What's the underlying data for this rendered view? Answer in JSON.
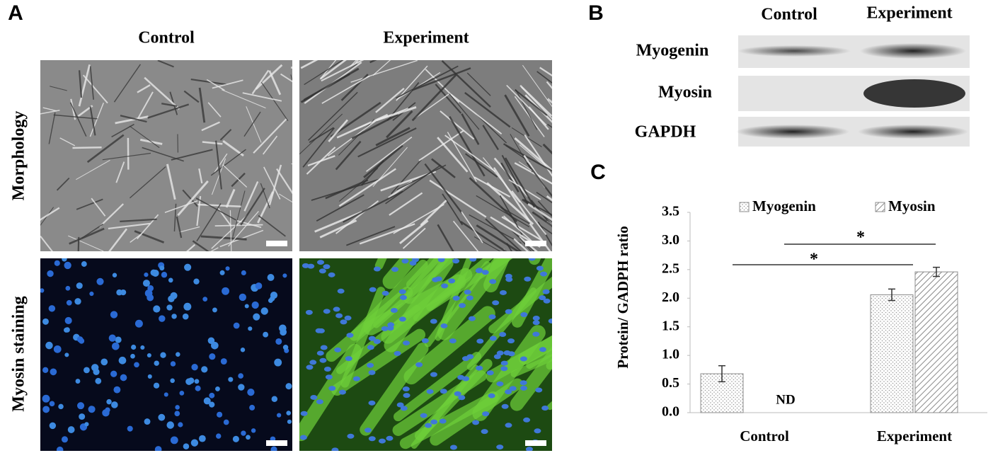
{
  "panel_a": {
    "label": "A",
    "columns": [
      "Control",
      "Experiment"
    ],
    "rows": [
      "Morphology",
      "Myosin staining"
    ]
  },
  "panel_b": {
    "label": "B",
    "columns": [
      "Control",
      "Experiment"
    ],
    "rows": [
      "Myogenin",
      "Myosin",
      "GAPDH"
    ]
  },
  "panel_c": {
    "label": "C"
  },
  "chart_data": {
    "type": "bar",
    "y_label": "Protein/ GADPH ratio",
    "categories": [
      "Control",
      "Experiment"
    ],
    "series": [
      {
        "name": "Myogenin",
        "color": "#8c8c8c",
        "pattern": "dots",
        "values": [
          0.68,
          2.06
        ],
        "errors": [
          0.14,
          0.1
        ]
      },
      {
        "name": "Myosin",
        "color": "#8c8c8c",
        "pattern": "hatch",
        "values": [
          null,
          2.46
        ],
        "errors": [
          null,
          0.08
        ]
      }
    ],
    "ylim": [
      0,
      3.5
    ],
    "yticks": [
      {
        "value": 0,
        "label": "0.0"
      },
      0.5,
      {
        "value": 1,
        "label": "1.0"
      },
      1.5,
      {
        "value": 2,
        "label": "2.0"
      },
      2.5,
      {
        "value": 3,
        "label": "3.0"
      },
      3.5
    ],
    "annotations": [
      "ND",
      "*",
      "*"
    ]
  }
}
